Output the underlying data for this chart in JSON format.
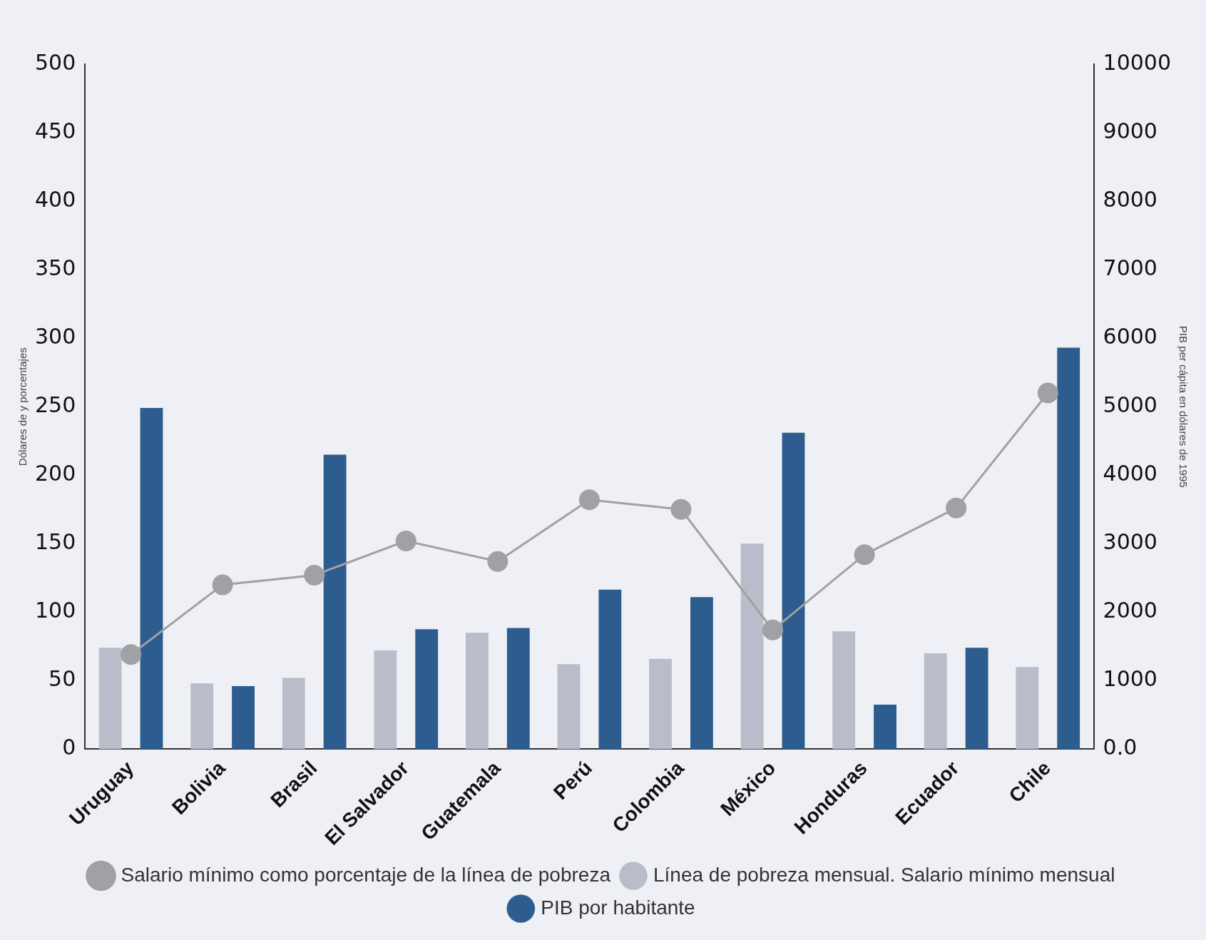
{
  "chart_data": {
    "type": "bar",
    "ylabel": "Dólares de y porcentajes",
    "y2label": "PIB per cápita en dólares de 1995",
    "categories": [
      "Uruguay",
      "Bolivia",
      "Brasil",
      "El Salvador",
      "Guatemala",
      "Perú",
      "Colombia",
      "México",
      "Honduras",
      "Ecuador",
      "Chile"
    ],
    "series": [
      {
        "name": "Línea de pobreza mensual. Salario mínimo mensual",
        "color": "#b9bdc9",
        "values": [
          74,
          48,
          52,
          72,
          85,
          62,
          66,
          150,
          86,
          70,
          60
        ]
      },
      {
        "name": "PIB por habitante",
        "color": "#2d5d8e",
        "axis": "y2",
        "values": [
          4980,
          920,
          4300,
          1750,
          1770,
          2330,
          2220,
          4620,
          650,
          1480,
          5860
        ]
      },
      {
        "name": "Salario mínimo como porcentaje de la línea de pobreza",
        "type": "line",
        "color": "#a0a0a6",
        "values": [
          69,
          120,
          127,
          152,
          137,
          182,
          175,
          87,
          142,
          176,
          260
        ]
      }
    ],
    "ylim": [
      0,
      500
    ],
    "yticks": [
      0,
      50,
      100,
      150,
      200,
      250,
      300,
      350,
      400,
      450,
      500
    ],
    "y2lim": [
      0,
      10000
    ],
    "y2ticks": [
      {
        "value": 0,
        "label": "0.0"
      },
      1000,
      2000,
      3000,
      4000,
      5000,
      6000,
      7000,
      8000,
      9000,
      10000
    ],
    "grid": false,
    "legend": "bottom",
    "marker": "circle"
  }
}
